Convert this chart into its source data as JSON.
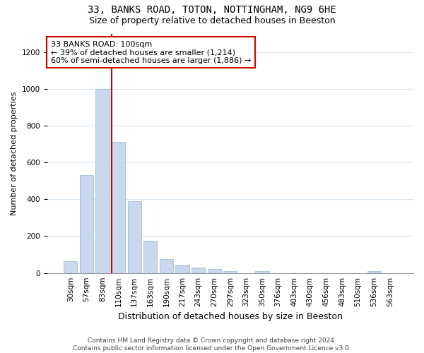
{
  "title1": "33, BANKS ROAD, TOTON, NOTTINGHAM, NG9 6HE",
  "title2": "Size of property relative to detached houses in Beeston",
  "xlabel": "Distribution of detached houses by size in Beeston",
  "ylabel": "Number of detached properties",
  "categories": [
    "30sqm",
    "57sqm",
    "83sqm",
    "110sqm",
    "137sqm",
    "163sqm",
    "190sqm",
    "217sqm",
    "243sqm",
    "270sqm",
    "297sqm",
    "323sqm",
    "350sqm",
    "376sqm",
    "403sqm",
    "430sqm",
    "456sqm",
    "483sqm",
    "510sqm",
    "536sqm",
    "563sqm"
  ],
  "values": [
    65,
    530,
    1000,
    710,
    390,
    175,
    75,
    45,
    30,
    20,
    12,
    0,
    12,
    0,
    0,
    0,
    0,
    0,
    0,
    10,
    0
  ],
  "bar_color": "#c8d8ed",
  "bar_edge_color": "#9ab5d0",
  "vline_index": 3,
  "vline_color": "#cc0000",
  "annotation_text": "33 BANKS ROAD: 100sqm\n← 39% of detached houses are smaller (1,214)\n60% of semi-detached houses are larger (1,886) →",
  "annotation_box_facecolor": "#ffffff",
  "annotation_box_edgecolor": "#cc0000",
  "ylim": [
    0,
    1300
  ],
  "yticks": [
    0,
    200,
    400,
    600,
    800,
    1000,
    1200
  ],
  "footer_text": "Contains HM Land Registry data © Crown copyright and database right 2024.\nContains public sector information licensed under the Open Government Licence v3.0.",
  "background_color": "#ffffff",
  "plot_background": "#ffffff",
  "grid_color": "#d8e4f0",
  "title_fontsize": 10,
  "subtitle_fontsize": 9,
  "xlabel_fontsize": 9,
  "ylabel_fontsize": 8,
  "tick_fontsize": 7.5,
  "annotation_fontsize": 8,
  "footer_fontsize": 6.5
}
